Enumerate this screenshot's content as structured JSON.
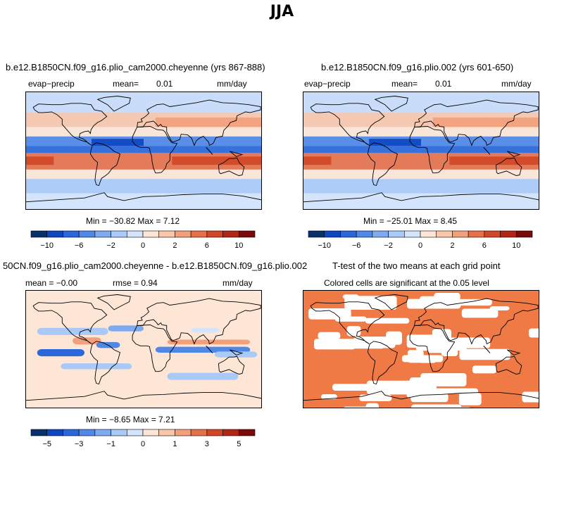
{
  "season": "JJA",
  "panels": [
    {
      "title": "b.e12.B1850CN.f09_g16.plio_cam2000.cheyenne (yrs 867-888)",
      "variable": "evap−precip",
      "mean_label": "mean=",
      "mean_value": "0.01",
      "units": "mm/day",
      "stats": "Min = −30.82 Max =    7.12"
    },
    {
      "title": "b.e12.B1850CN.f09_g16.plio.002 (yrs 601-650)",
      "variable": "evap−precip",
      "mean_label": "mean=",
      "mean_value": "0.01",
      "units": "mm/day",
      "stats": "Min = −25.01 Max =    8.45"
    },
    {
      "title": "50CN.f09_g16.plio_cam2000.cheyenne - b.e12.B1850CN.f09_g16.plio.002",
      "mean_text": "mean =  −0.00",
      "rmse_text": "rmse =   0.94",
      "units": "mm/day",
      "stats": "Min =  −8.65 Max =    7.21"
    },
    {
      "title": "T-test of the two means at each grid point",
      "subtitle": "Colored cells are significant at the 0.05 level"
    }
  ],
  "colorbar_main": {
    "colors": [
      "#08306b",
      "#0d47c0",
      "#2a67d8",
      "#4f88e6",
      "#7eaaf0",
      "#a9c9f6",
      "#d3e4fb",
      "#fde6d6",
      "#f8c6aa",
      "#f2a07c",
      "#e5714b",
      "#d04727",
      "#b02515",
      "#7a0a0a"
    ],
    "tick_labels": [
      "−10",
      "−6",
      "−2",
      "0",
      "2",
      "6",
      "10"
    ]
  },
  "colorbar_diff": {
    "colors": [
      "#08306b",
      "#0d47c0",
      "#2a67d8",
      "#4f88e6",
      "#7eaaf0",
      "#a9c9f6",
      "#d3e4fb",
      "#fde6d6",
      "#f8c6aa",
      "#f2a07c",
      "#e5714b",
      "#d04727",
      "#b02515",
      "#7a0a0a"
    ],
    "tick_labels": [
      "−5",
      "−3",
      "−1",
      "0",
      "1",
      "3",
      "5"
    ]
  },
  "significance_color": "#ef7a45",
  "chart_data": [
    {
      "type": "heatmap",
      "title": "b.e12.B1850CN.f09_g16.plio_cam2000.cheyenne (yrs 867-888)",
      "variable": "evap−precip",
      "units": "mm/day",
      "mean": 0.01,
      "min": -30.82,
      "max": 7.12,
      "color_levels": [
        -12,
        -10,
        -8,
        -6,
        -4,
        -2,
        -1,
        0,
        1,
        2,
        4,
        6,
        8,
        10,
        12
      ]
    },
    {
      "type": "heatmap",
      "title": "b.e12.B1850CN.f09_g16.plio.002 (yrs 601-650)",
      "variable": "evap−precip",
      "units": "mm/day",
      "mean": 0.01,
      "min": -25.01,
      "max": 8.45,
      "color_levels": [
        -12,
        -10,
        -8,
        -6,
        -4,
        -2,
        -1,
        0,
        1,
        2,
        4,
        6,
        8,
        10,
        12
      ]
    },
    {
      "type": "heatmap",
      "title": "50CN.f09_g16.plio_cam2000.cheyenne - b.e12.B1850CN.f09_g16.plio.002",
      "units": "mm/day",
      "mean": -0.0,
      "rmse": 0.94,
      "min": -8.65,
      "max": 7.21,
      "color_levels": [
        -6,
        -5,
        -4,
        -3,
        -2,
        -1,
        -0.5,
        0,
        0.5,
        1,
        2,
        3,
        4,
        5,
        6
      ]
    },
    {
      "type": "heatmap",
      "title": "T-test of the two means at each grid point",
      "subtitle": "Colored cells are significant at the 0.05 level"
    }
  ]
}
